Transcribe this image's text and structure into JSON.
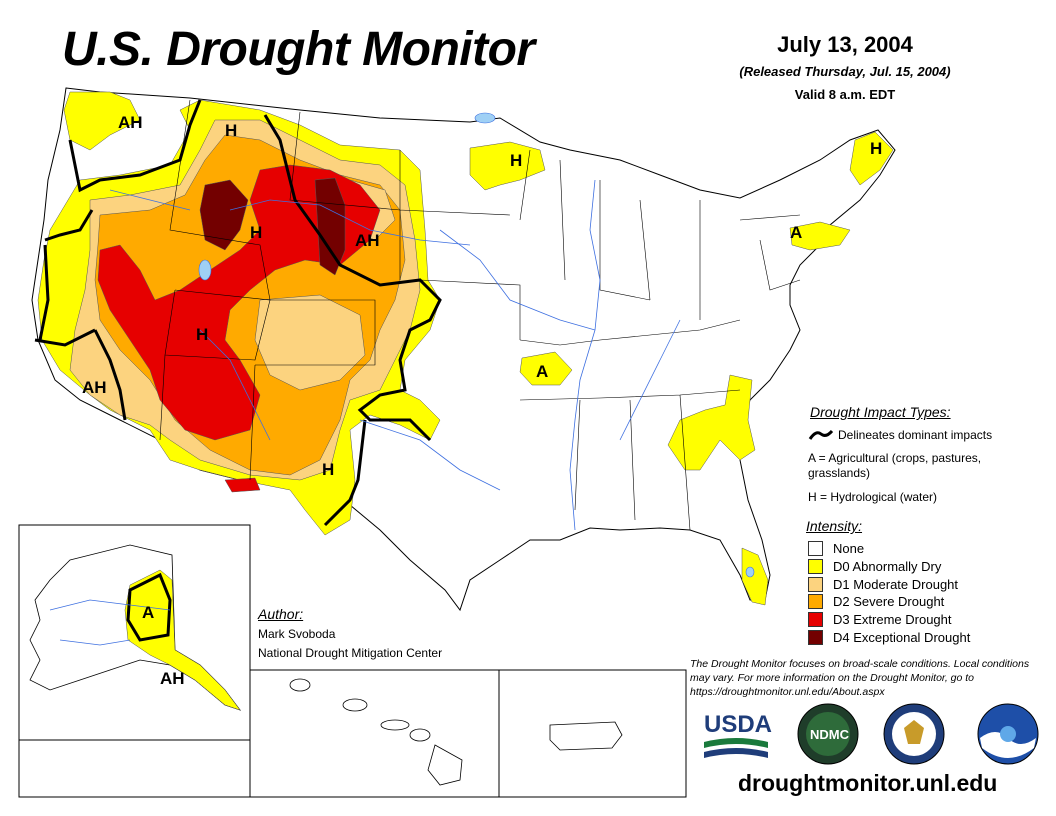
{
  "title": "U.S. Drought Monitor",
  "date": "July 13, 2004",
  "released": "(Released Thursday, Jul. 15, 2004)",
  "valid": "Valid 8 a.m. EDT",
  "impact_types": {
    "title": "Drought Impact Types:",
    "delineates": "Delineates dominant impacts",
    "agricultural": "A = Agricultural (crops, pastures, grasslands)",
    "hydrological": "H = Hydrological (water)"
  },
  "intensity": {
    "title": "Intensity:",
    "levels": [
      {
        "label": "None",
        "color": "#ffffff"
      },
      {
        "label": "D0 Abnormally Dry",
        "color": "#ffff00"
      },
      {
        "label": "D1 Moderate Drought",
        "color": "#fcd37f"
      },
      {
        "label": "D2 Severe Drought",
        "color": "#ffaa00"
      },
      {
        "label": "D3 Extreme Drought",
        "color": "#e60000"
      },
      {
        "label": "D4 Exceptional Drought",
        "color": "#730000"
      }
    ]
  },
  "author": {
    "heading": "Author:",
    "name": "Mark Svoboda",
    "org": "National Drought Mitigation Center"
  },
  "disclaimer": "The Drought Monitor focuses on broad-scale conditions. Local conditions may vary. For more information on the Drought Monitor, go to https://droughtmonitor.unl.edu/About.aspx",
  "url": "droughtmonitor.unl.edu",
  "map_labels": {
    "ah_pnw": "AH",
    "h_mt": "H",
    "h_wy": "H",
    "ah_dak": "AH",
    "h_mn": "H",
    "h_me": "H",
    "a_ny": "A",
    "h_ut": "H",
    "ah_ca": "AH",
    "a_mo": "A",
    "h_nm": "H",
    "a_ak": "A",
    "ah_ak": "AH"
  },
  "logos": {
    "usda": "USDA",
    "ndmc": "NDMC"
  }
}
